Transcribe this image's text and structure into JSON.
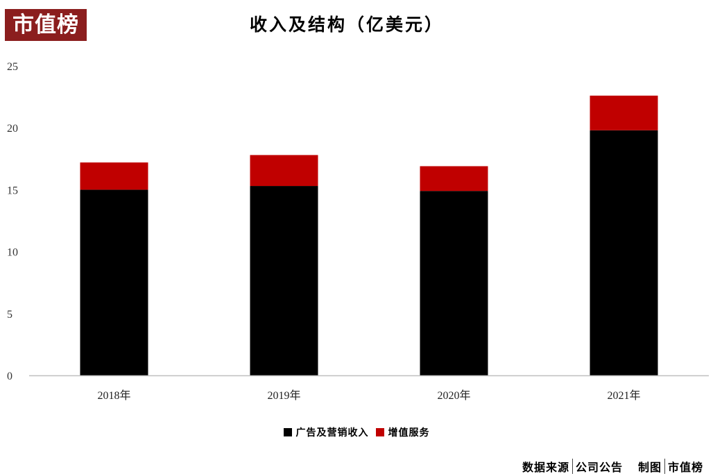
{
  "brand": {
    "logo_text": "市值榜"
  },
  "chart_data": {
    "type": "bar",
    "stacked": true,
    "title": "收入及结构（亿美元）",
    "categories": [
      "2018年",
      "2019年",
      "2020年",
      "2021年"
    ],
    "series": [
      {
        "name": "广告及营销收入",
        "color": "#000000",
        "values": [
          15.0,
          15.3,
          14.9,
          19.8
        ]
      },
      {
        "name": "增值服务",
        "color": "#c00000",
        "values": [
          2.2,
          2.5,
          2.0,
          2.8
        ]
      }
    ],
    "ylim": [
      0,
      25
    ],
    "yticks": [
      0,
      5,
      10,
      15,
      20,
      25
    ],
    "xlabel": "",
    "ylabel": "",
    "grid": false,
    "legend_position": "bottom"
  },
  "footer": {
    "source_label": "数据来源",
    "source_value": "公司公告",
    "made_label": "制图",
    "made_value": "市值榜"
  }
}
